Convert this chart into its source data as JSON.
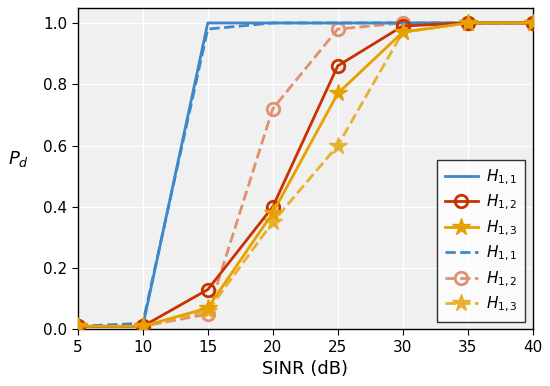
{
  "sinr": [
    5,
    10,
    15,
    20,
    25,
    30,
    35,
    40
  ],
  "H11_solid": [
    0.01,
    0.01,
    1.0,
    1.0,
    1.0,
    1.0,
    1.0,
    1.0
  ],
  "H12_solid": [
    0.01,
    0.01,
    0.13,
    0.4,
    0.86,
    0.99,
    1.0,
    1.0
  ],
  "H13_solid": [
    0.01,
    0.01,
    0.07,
    0.38,
    0.77,
    0.97,
    1.0,
    1.0
  ],
  "H11_dashed": [
    0.01,
    0.02,
    0.98,
    1.0,
    1.0,
    1.0,
    1.0,
    1.0
  ],
  "H12_dashed": [
    0.01,
    0.01,
    0.05,
    0.72,
    0.98,
    1.0,
    1.0,
    1.0
  ],
  "H13_dashed": [
    0.01,
    0.01,
    0.06,
    0.35,
    0.6,
    0.97,
    1.0,
    1.0
  ],
  "color_blue": "#3d88c8",
  "color_red": "#c83200",
  "color_yellow": "#e6a000",
  "color_pink": "#e09070",
  "color_dashed_yellow": "#e6b030",
  "xlabel": "SINR (dB)",
  "ylabel": "$P_d$",
  "xlim": [
    5,
    40
  ],
  "ylim": [
    0,
    1.05
  ],
  "xticks": [
    5,
    10,
    15,
    20,
    25,
    30,
    35,
    40
  ],
  "yticks": [
    0.0,
    0.2,
    0.4,
    0.6,
    0.8,
    1.0
  ],
  "legend_labels": [
    "$H_{1,1}$",
    "$H_{1,2}$",
    "$H_{1,3}$",
    "$H_{1,1}$",
    "$H_{1,2}$",
    "$H_{1,3}$"
  ],
  "bg_color": "#f0f0f0",
  "grid_color": "#ffffff",
  "marker_circle_size": 9,
  "marker_star_size": 13,
  "linewidth": 2.0
}
